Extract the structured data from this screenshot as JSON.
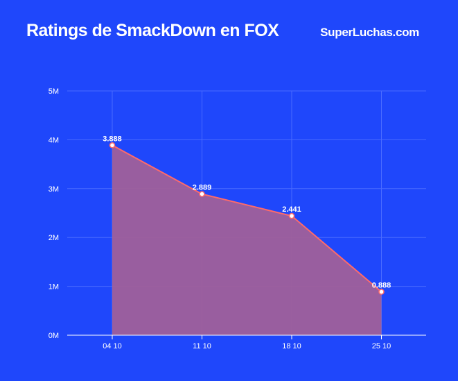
{
  "header": {
    "title": "Ratings de SmackDown en FOX",
    "brand": "SuperLuchas.com"
  },
  "colors": {
    "background": "#1f47fb",
    "area_fill": "#a0609a",
    "line": "#ff6a6a",
    "grid": "#4a6bff"
  },
  "chart_data": {
    "type": "area",
    "title": "Ratings de SmackDown en FOX",
    "categories": [
      "04 10",
      "11 10",
      "18 10",
      "25 10"
    ],
    "values": [
      3.888,
      2.889,
      2.441,
      0.888
    ],
    "data_labels": [
      "3.888",
      "2.889",
      "2.441",
      "0.888"
    ],
    "y_ticks": [
      "0M",
      "1M",
      "2M",
      "3M",
      "4M",
      "5M"
    ],
    "ylim": [
      0,
      5
    ],
    "grid": true,
    "legend": "none"
  }
}
